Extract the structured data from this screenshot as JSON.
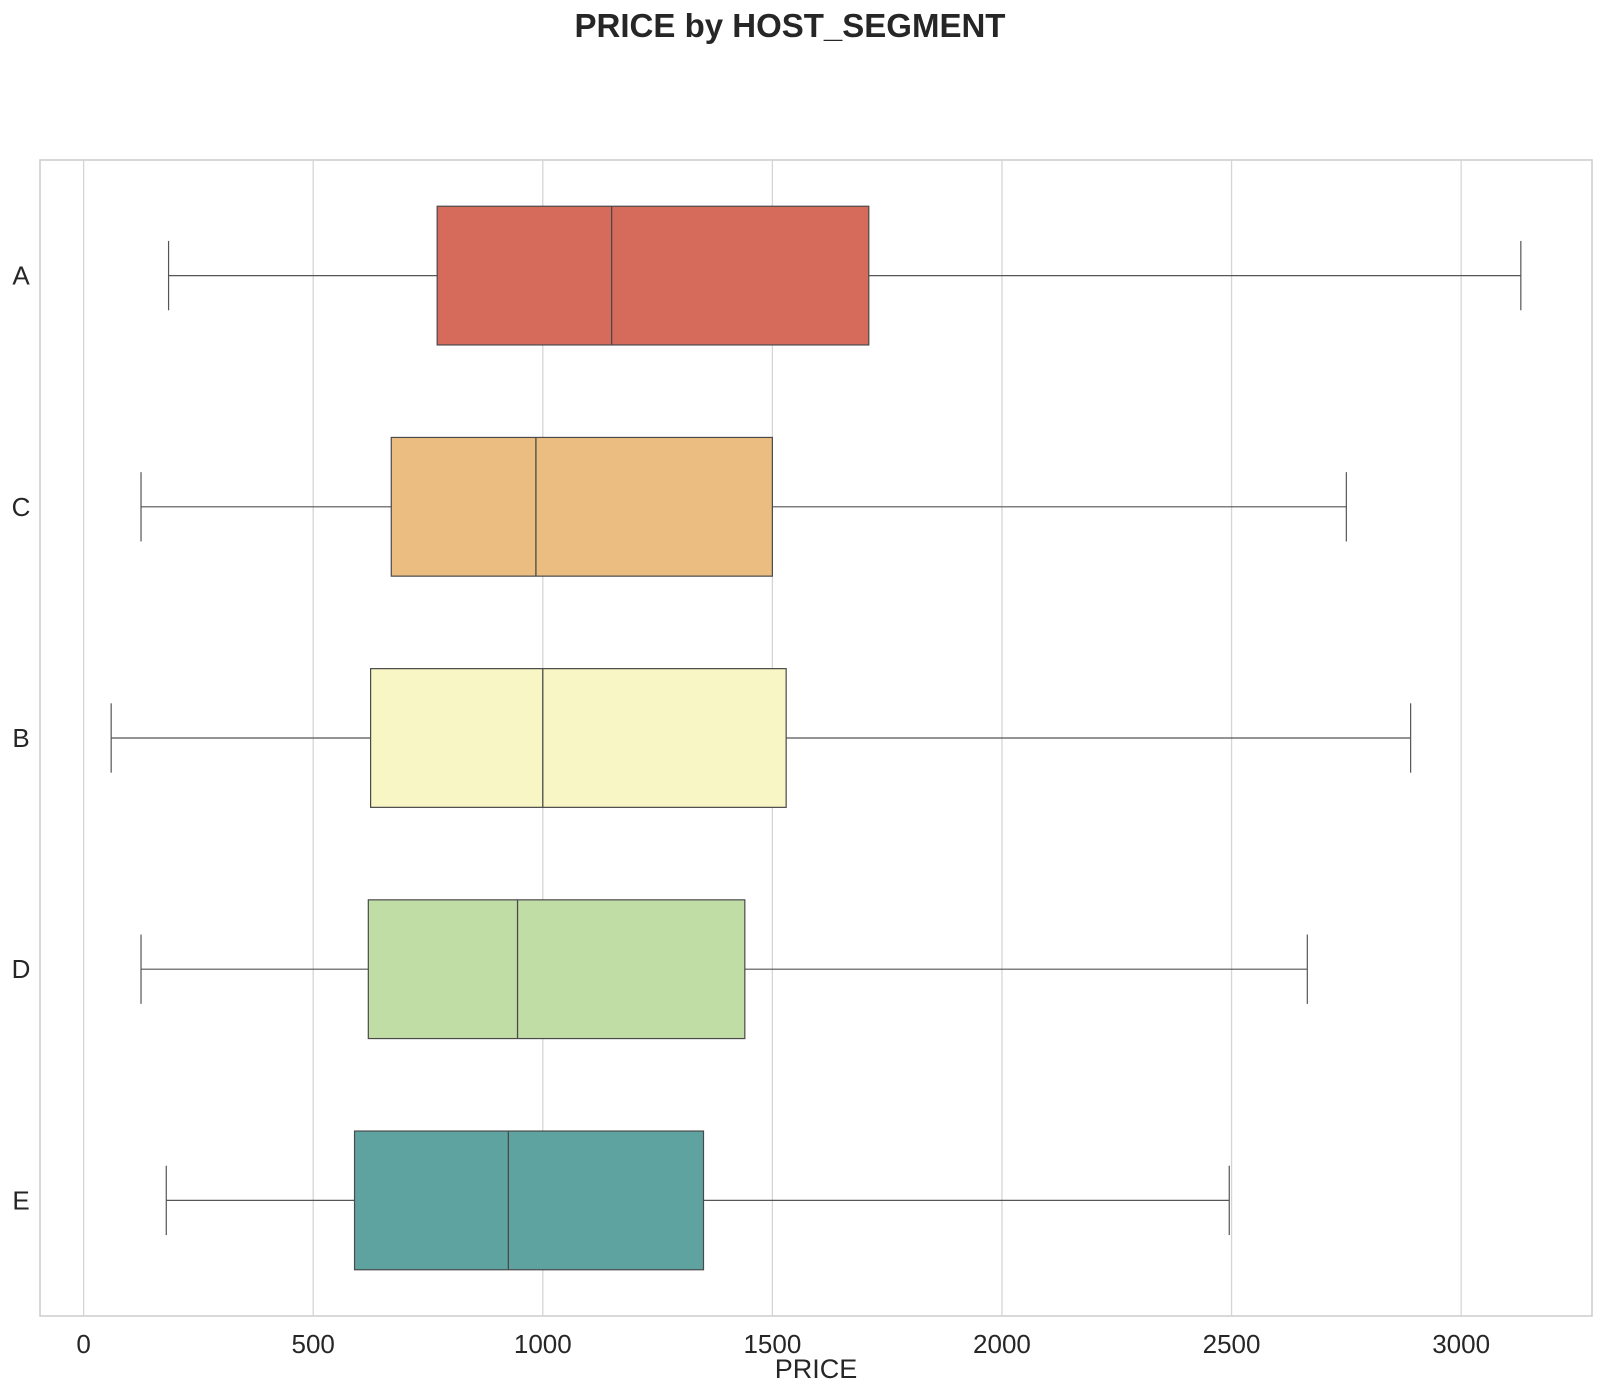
{
  "chart_data": {
    "type": "boxplot",
    "orientation": "horizontal",
    "title": "PRICE by HOST_SEGMENT",
    "xlabel": "PRICE",
    "ylabel": "",
    "xlim": [
      -95,
      3285
    ],
    "x_ticks": [
      0,
      500,
      1000,
      1500,
      2000,
      2500,
      3000
    ],
    "grid": "vertical",
    "categories": [
      "A",
      "C",
      "B",
      "D",
      "E"
    ],
    "boxes": [
      {
        "label": "A",
        "whisker_low": 185,
        "q1": 770,
        "median": 1150,
        "q3": 1710,
        "whisker_high": 3130,
        "color": "#d66b5c"
      },
      {
        "label": "C",
        "whisker_low": 125,
        "q1": 670,
        "median": 985,
        "q3": 1500,
        "whisker_high": 2750,
        "color": "#ebbd81"
      },
      {
        "label": "B",
        "whisker_low": 60,
        "q1": 625,
        "median": 1000,
        "q3": 1530,
        "whisker_high": 2890,
        "color": "#f7f6c4"
      },
      {
        "label": "D",
        "whisker_low": 125,
        "q1": 620,
        "median": 945,
        "q3": 1440,
        "whisker_high": 2665,
        "color": "#c1dda6"
      },
      {
        "label": "E",
        "whisker_low": 180,
        "q1": 590,
        "median": 925,
        "q3": 1350,
        "whisker_high": 2495,
        "color": "#5fa3a1"
      }
    ]
  }
}
